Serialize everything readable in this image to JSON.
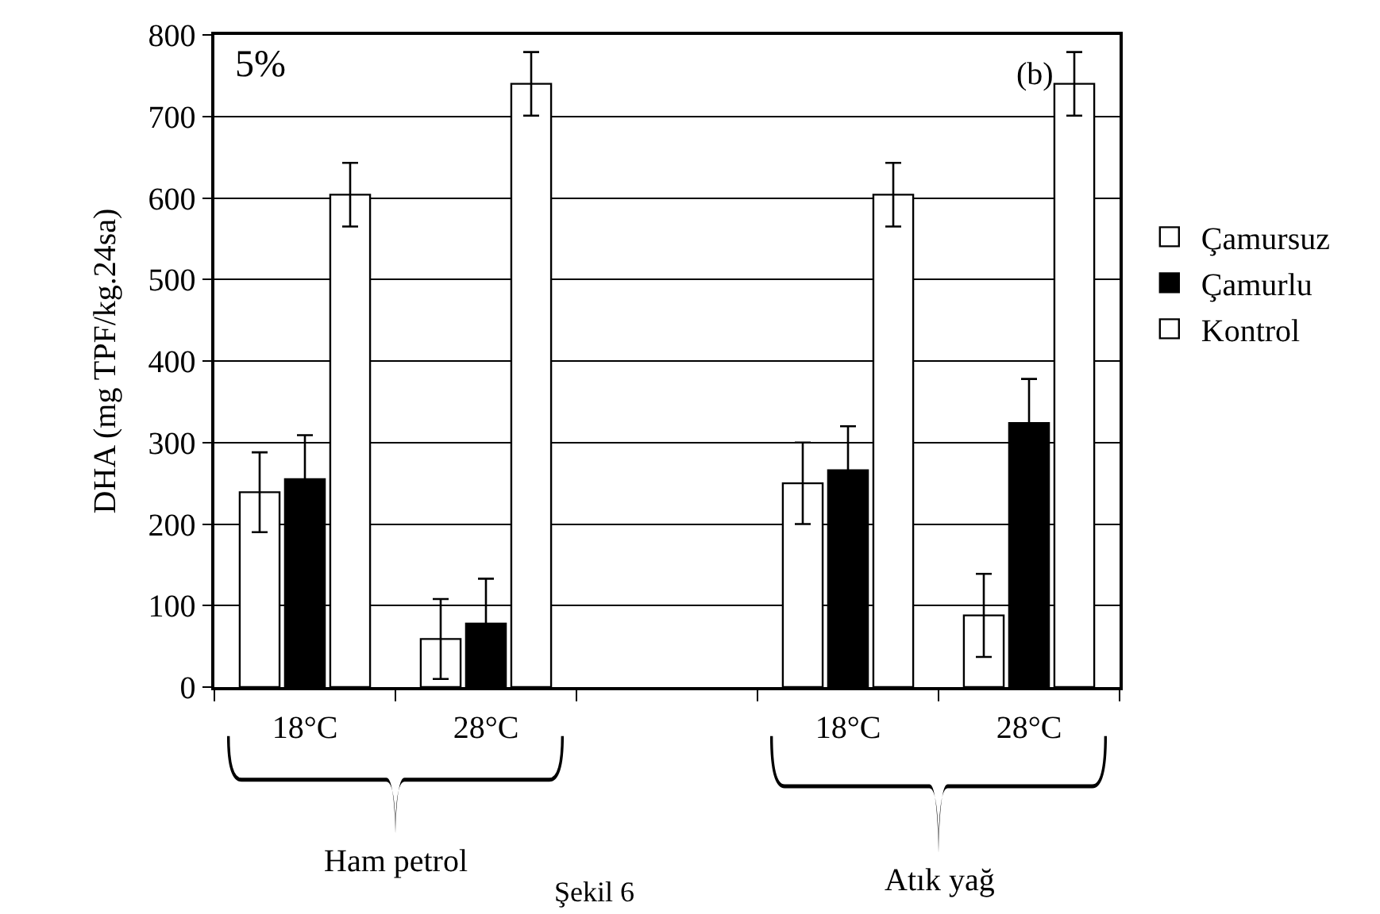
{
  "chart_data": {
    "type": "bar",
    "ylabel": "DHA (mg TPF/kg.24sa)",
    "categories": [
      "18°C",
      "28°C",
      null,
      "18°C",
      "28°C"
    ],
    "series": [
      {
        "name": "Çamursuz",
        "color": "#ffffff",
        "values": [
          239,
          59,
          null,
          250,
          88
        ],
        "errors": [
          49,
          49,
          null,
          50,
          51
        ]
      },
      {
        "name": "Çamurlu",
        "color": "#000000",
        "values": [
          255,
          78,
          null,
          266,
          324
        ],
        "errors": [
          54,
          55,
          null,
          54,
          54
        ]
      },
      {
        "name": "Kontrol",
        "color": "#ffffff",
        "values": [
          604,
          740,
          null,
          604,
          740
        ],
        "errors": [
          39,
          39,
          null,
          39,
          39
        ]
      }
    ],
    "ylim": [
      0,
      800
    ],
    "yticks": [
      0,
      100,
      200,
      300,
      400,
      500,
      600,
      700,
      800
    ],
    "grid": "y",
    "legend": "right",
    "annotations": [
      "5%",
      "(b)",
      "Ham petrol",
      "Atık yağ",
      "Şekil 6"
    ]
  }
}
